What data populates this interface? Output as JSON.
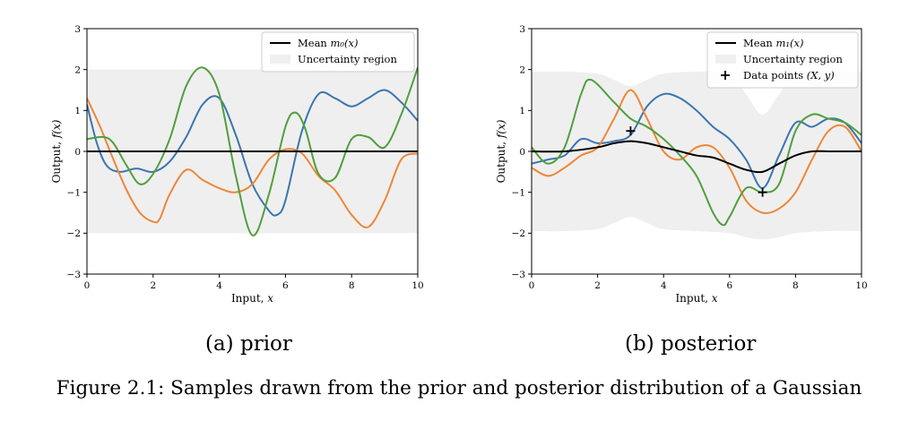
{
  "figure_caption": "Figure 2.1: Samples drawn from the prior and posterior distribution of a Gaussian",
  "colors": {
    "mean": "#000000",
    "uncertainty": "#efefef",
    "axis": "#000000"
  },
  "chart_data": [
    {
      "type": "line",
      "subcaption": "(a) prior",
      "xlabel": "Input,",
      "xlabel_var": "x",
      "ylabel": "Output,",
      "ylabel_var": "f(x)",
      "xlim": [
        0,
        10
      ],
      "ylim": [
        -3,
        3
      ],
      "xticks": [
        0,
        2,
        4,
        6,
        8,
        10
      ],
      "yticks": [
        -3,
        -2,
        -1,
        0,
        1,
        2,
        3
      ],
      "grid": false,
      "legend_position": "top-right",
      "legend": [
        {
          "kind": "line",
          "text": "Mean ",
          "math": "m₀(x)"
        },
        {
          "kind": "patch",
          "text": "Uncertainty region",
          "math": ""
        }
      ],
      "mean": {
        "x": [
          0,
          10
        ],
        "y": [
          0,
          0
        ]
      },
      "band": {
        "x": [
          0,
          10
        ],
        "upper": [
          2,
          2
        ],
        "lower": [
          -2,
          -2
        ]
      },
      "series": [
        {
          "color": "#3b75af",
          "x": [
            0,
            0.3,
            0.6,
            1,
            1.5,
            2,
            2.5,
            3,
            3.5,
            4,
            4.5,
            5,
            5.5,
            5.75,
            6,
            6.5,
            7,
            7.5,
            8,
            8.5,
            9,
            9.5,
            10
          ],
          "y": [
            1.15,
            0.2,
            -0.35,
            -0.5,
            -0.42,
            -0.5,
            -0.25,
            0.35,
            1.15,
            1.3,
            0.4,
            -0.8,
            -1.45,
            -1.55,
            -1.2,
            0.5,
            1.4,
            1.3,
            1.1,
            1.3,
            1.5,
            1.2,
            0.75
          ]
        },
        {
          "color": "#ef8636",
          "x": [
            0,
            0.4,
            0.8,
            1.2,
            1.6,
            2,
            2.2,
            2.5,
            3,
            3.5,
            4,
            4.5,
            5,
            5.5,
            6,
            6.5,
            7,
            7.5,
            8,
            8.5,
            9,
            9.5,
            10
          ],
          "y": [
            1.3,
            0.6,
            -0.2,
            -0.95,
            -1.5,
            -1.72,
            -1.65,
            -1.05,
            -0.45,
            -0.7,
            -0.9,
            -1.0,
            -0.8,
            -0.2,
            0.05,
            -0.05,
            -0.6,
            -0.95,
            -1.55,
            -1.85,
            -1.2,
            -0.2,
            -0.05
          ]
        },
        {
          "color": "#519e3e",
          "x": [
            0,
            0.5,
            0.8,
            1.2,
            1.6,
            2,
            2.5,
            3,
            3.5,
            4,
            4.5,
            5,
            5.5,
            6,
            6.3,
            6.6,
            7,
            7.5,
            8,
            8.5,
            9,
            9.5,
            10
          ],
          "y": [
            0.3,
            0.35,
            0.2,
            -0.35,
            -0.8,
            -0.55,
            0.3,
            1.6,
            2.05,
            1.4,
            -0.6,
            -2.05,
            -1.05,
            0.6,
            0.95,
            0.55,
            -0.55,
            -0.65,
            0.3,
            0.35,
            0.1,
            0.9,
            2.05
          ]
        }
      ]
    },
    {
      "type": "line",
      "subcaption": "(b) posterior",
      "xlabel": "Input,",
      "xlabel_var": "x",
      "ylabel": "Output,",
      "ylabel_var": "f(x)",
      "xlim": [
        0,
        10
      ],
      "ylim": [
        -3,
        3
      ],
      "xticks": [
        0,
        2,
        4,
        6,
        8,
        10
      ],
      "yticks": [
        -3,
        -2,
        -1,
        0,
        1,
        2,
        3
      ],
      "grid": false,
      "legend_position": "top-right",
      "legend": [
        {
          "kind": "line",
          "text": "Mean ",
          "math": "m₁(x)"
        },
        {
          "kind": "patch",
          "text": "Uncertainty region",
          "math": ""
        },
        {
          "kind": "marker",
          "text": "Data points ",
          "math": "(X, y)"
        }
      ],
      "points": {
        "x": [
          3,
          7
        ],
        "y": [
          0.5,
          -1
        ]
      },
      "mean": {
        "x": [
          0,
          1,
          2,
          2.5,
          3,
          3.5,
          4,
          4.5,
          5,
          5.5,
          6,
          6.5,
          7,
          7.5,
          8,
          8.5,
          9,
          10
        ],
        "y": [
          0,
          0,
          0.1,
          0.2,
          0.25,
          0.2,
          0.1,
          0,
          -0.1,
          -0.15,
          -0.3,
          -0.45,
          -0.5,
          -0.3,
          -0.1,
          0,
          0,
          0
        ]
      },
      "band": {
        "x": [
          0,
          1,
          2,
          2.5,
          3,
          3.5,
          4,
          5,
          6,
          6.5,
          7,
          7.5,
          8,
          9,
          10
        ],
        "upper": [
          1.95,
          1.95,
          1.9,
          1.75,
          1.6,
          1.75,
          1.9,
          1.95,
          1.9,
          1.4,
          0.9,
          1.4,
          1.9,
          1.95,
          1.95
        ],
        "lower": [
          -1.95,
          -1.95,
          -1.9,
          -1.75,
          -1.6,
          -1.75,
          -1.9,
          -1.95,
          -2.0,
          -2.1,
          -2.15,
          -2.1,
          -2.0,
          -1.95,
          -1.95
        ]
      },
      "series": [
        {
          "color": "#3b75af",
          "x": [
            0,
            0.5,
            1,
            1.5,
            2,
            2.5,
            3,
            3.5,
            4,
            4.5,
            5,
            5.5,
            6,
            6.5,
            7,
            7.5,
            8,
            8.5,
            9,
            9.5,
            10
          ],
          "y": [
            -0.3,
            -0.2,
            -0.1,
            0.3,
            0.2,
            0.25,
            0.4,
            1.1,
            1.4,
            1.3,
            1.0,
            0.6,
            0.3,
            -0.2,
            -0.9,
            -0.1,
            0.7,
            0.6,
            0.8,
            0.7,
            0.2
          ]
        },
        {
          "color": "#ef8636",
          "x": [
            0,
            0.5,
            1,
            1.5,
            2,
            2.5,
            3,
            3.5,
            4,
            4.5,
            5,
            5.5,
            6,
            6.5,
            7,
            7.5,
            8,
            8.5,
            9,
            9.5,
            10
          ],
          "y": [
            -0.4,
            -0.6,
            -0.4,
            -0.1,
            0.1,
            0.8,
            1.5,
            0.8,
            0.0,
            -0.2,
            0.1,
            0.1,
            -0.4,
            -1.2,
            -1.5,
            -1.4,
            -1.0,
            -0.2,
            0.5,
            0.6,
            0.0
          ]
        },
        {
          "color": "#519e3e",
          "x": [
            0,
            0.5,
            1,
            1.5,
            1.8,
            2.5,
            3,
            3.5,
            4,
            4.5,
            5,
            5.5,
            5.8,
            6,
            6.5,
            7,
            7.5,
            8,
            8.5,
            9,
            9.5,
            10
          ],
          "y": [
            0.1,
            -0.3,
            0.1,
            1.4,
            1.75,
            1.2,
            0.8,
            0.6,
            0.3,
            -0.1,
            -0.6,
            -1.5,
            -1.8,
            -1.6,
            -0.9,
            -1.0,
            -0.8,
            0.5,
            0.9,
            0.8,
            0.7,
            0.4
          ]
        }
      ]
    }
  ]
}
